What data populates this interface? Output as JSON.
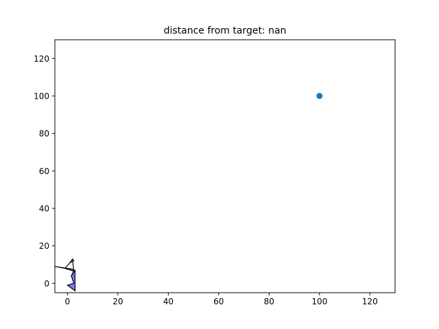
{
  "chart_data": {
    "type": "scatter",
    "title": "distance from target: nan",
    "xlabel": "",
    "ylabel": "",
    "xlim": [
      -5,
      130
    ],
    "ylim": [
      -5,
      130
    ],
    "xticks": [
      0,
      20,
      40,
      60,
      80,
      100,
      120
    ],
    "yticks": [
      0,
      20,
      40,
      60,
      80,
      100,
      120
    ],
    "grid": false,
    "legend": "none",
    "target": {
      "x": 100,
      "y": 100,
      "color": "#1f77b4"
    },
    "shapes": [
      {
        "fill": "#7b7bf0",
        "points": [
          [
            -5,
            9
          ],
          [
            2,
            7.5
          ],
          [
            2.5,
            6.5
          ],
          [
            1.5,
            4
          ],
          [
            2.5,
            6.5
          ],
          [
            -1,
            8
          ]
        ]
      },
      {
        "fill": "#7b7bf0",
        "points": [
          [
            -1,
            8
          ],
          [
            2,
            12.5
          ],
          [
            2.5,
            6.5
          ],
          [
            1.5,
            4
          ],
          [
            2.5,
            6.5
          ],
          [
            2,
            12.5
          ]
        ]
      },
      {
        "fill": "#7b7bf0",
        "points": [
          [
            1.5,
            4
          ],
          [
            3,
            7
          ],
          [
            3,
            -4
          ],
          [
            0,
            -1
          ],
          [
            2.5,
            0
          ],
          [
            1.5,
            4
          ]
        ]
      },
      {
        "fill": "#7b7bf0",
        "points": [
          [
            2,
            13
          ],
          [
            1,
            11
          ],
          [
            2.5,
            12
          ]
        ]
      }
    ]
  }
}
